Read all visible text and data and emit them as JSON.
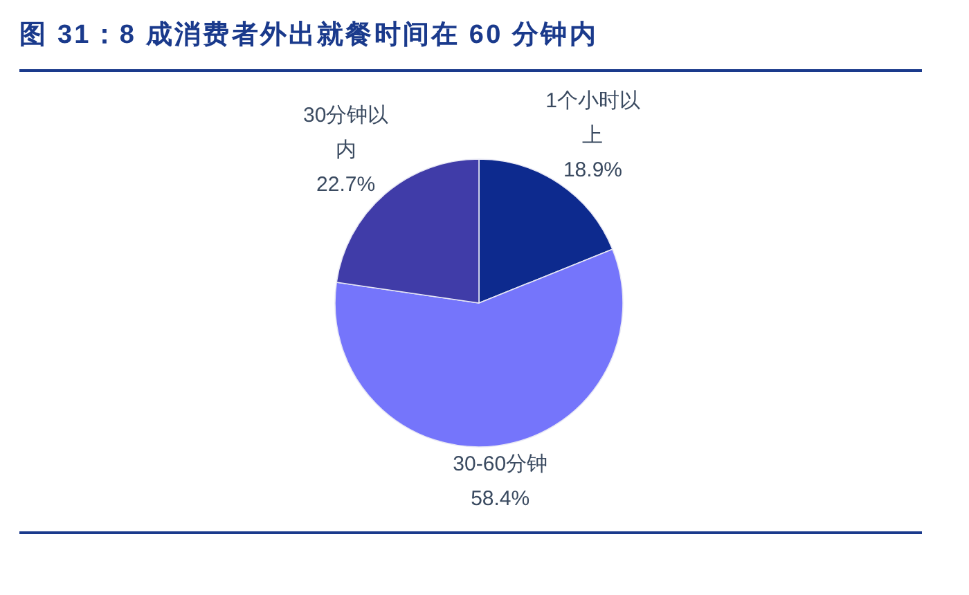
{
  "chart_data": {
    "type": "pie",
    "title": "图 31：8 成消费者外出就餐时间在 60 分钟内",
    "categories": [
      "1个小时以上",
      "30-60分钟",
      "30分钟以内"
    ],
    "values": [
      18.9,
      58.4,
      22.7
    ],
    "colors": [
      "#0d2a8e",
      "#7575fb",
      "#403ca8"
    ],
    "value_labels": [
      "18.9%",
      "58.4%",
      "22.7%"
    ]
  }
}
